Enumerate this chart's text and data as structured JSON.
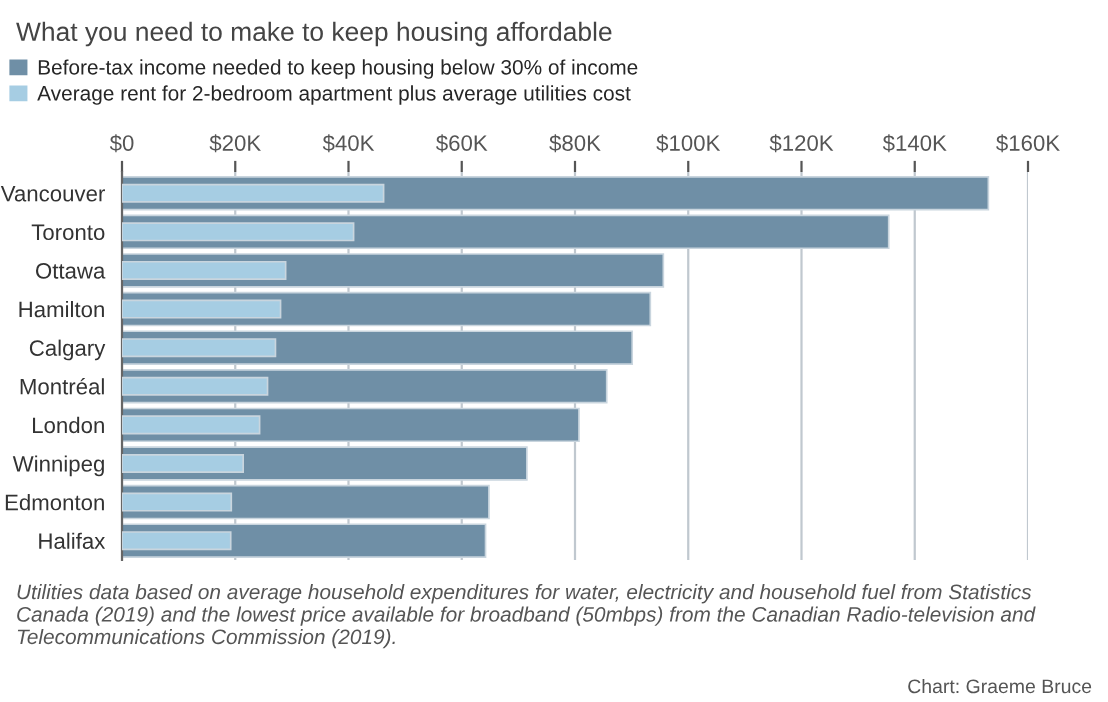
{
  "chart_data": {
    "type": "bar",
    "orientation": "horizontal",
    "title": "What you need to make to keep housing affordable",
    "categories": [
      "Vancouver",
      "Toronto",
      "Ottawa",
      "Hamilton",
      "Calgary",
      "Montréal",
      "London",
      "Winnipeg",
      "Edmonton",
      "Halifax"
    ],
    "series": [
      {
        "name": "Before-tax income needed to keep housing below 30% of income",
        "color": "#6f8fa6",
        "values": [
          153,
          135.4,
          95.6,
          93.3,
          90.1,
          85.6,
          80.7,
          71.5,
          64.8,
          64.2
        ]
      },
      {
        "name": "Average rent for 2-bedroom apartment plus average utilities cost",
        "color": "#a6cde3",
        "values": [
          46.2,
          40.9,
          28.9,
          28.0,
          27.1,
          25.7,
          24.3,
          21.4,
          19.3,
          19.2
        ]
      }
    ],
    "xlim": [
      0,
      160
    ],
    "xticks": [
      {
        "value": 0,
        "label": "$0"
      },
      {
        "value": 20,
        "label": "$20K"
      },
      {
        "value": 40,
        "label": "$40K"
      },
      {
        "value": 60,
        "label": "$60K"
      },
      {
        "value": 80,
        "label": "$80K"
      },
      {
        "value": 100,
        "label": "$100K"
      },
      {
        "value": 120,
        "label": "$120K"
      },
      {
        "value": 140,
        "label": "$140K"
      },
      {
        "value": 160,
        "label": "$160K"
      }
    ],
    "grid": "x",
    "legend": "top left",
    "annotations": [
      "Utilities data based on average household expenditures for water, electricity and household fuel from Statistics Canada (2019) and the lowest price available for broadband (50mbps) from the Canadian Radio-television and Telecommunications Commission (2019).",
      "Chart: Graeme Bruce"
    ]
  }
}
